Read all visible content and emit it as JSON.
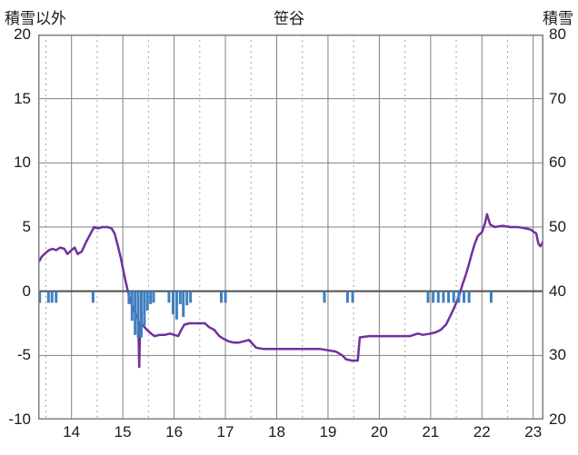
{
  "header": {
    "left_label": "積雪以外",
    "title": "笹谷",
    "right_label": "積雪"
  },
  "colors": {
    "line": "#7030a0",
    "bars": "#3f7fbf",
    "grid_major": "#808080",
    "grid_minor": "#a6a6a6",
    "zero_line": "#4d4d4d",
    "border": "#808080",
    "text": "#1a1a1a",
    "background": "#ffffff"
  },
  "chart_data": {
    "type": "line",
    "title": "笹谷",
    "left_axis": {
      "label": "積雪以外",
      "min": -10,
      "max": 20,
      "ticks": [
        20,
        15,
        10,
        5,
        0,
        -5,
        -10
      ]
    },
    "right_axis": {
      "label": "積雪",
      "min": 20,
      "max": 80,
      "ticks": [
        80,
        70,
        60,
        50,
        40,
        30,
        20
      ]
    },
    "x_axis": {
      "min": 13.35,
      "max": 23.2,
      "ticks": [
        14,
        15,
        16,
        17,
        18,
        19,
        20,
        21,
        22,
        23
      ],
      "minor_step": 0.5
    },
    "grid": {
      "major": true,
      "minor_dashed": true
    },
    "legend": "none",
    "series": [
      {
        "name": "temperature-line",
        "type": "line",
        "axis": "left",
        "color": "#7030a0",
        "points": [
          [
            13.35,
            2.2
          ],
          [
            13.42,
            2.7
          ],
          [
            13.5,
            3.0
          ],
          [
            13.56,
            3.2
          ],
          [
            13.63,
            3.3
          ],
          [
            13.7,
            3.2
          ],
          [
            13.78,
            3.4
          ],
          [
            13.86,
            3.3
          ],
          [
            13.92,
            2.9
          ],
          [
            14.0,
            3.2
          ],
          [
            14.06,
            3.4
          ],
          [
            14.12,
            2.9
          ],
          [
            14.2,
            3.1
          ],
          [
            14.28,
            3.8
          ],
          [
            14.36,
            4.4
          ],
          [
            14.44,
            5.0
          ],
          [
            14.52,
            4.9
          ],
          [
            14.6,
            5.0
          ],
          [
            14.7,
            5.0
          ],
          [
            14.78,
            4.9
          ],
          [
            14.84,
            4.5
          ],
          [
            14.9,
            3.6
          ],
          [
            14.96,
            2.6
          ],
          [
            15.02,
            1.4
          ],
          [
            15.08,
            0.3
          ],
          [
            15.14,
            -0.6
          ],
          [
            15.2,
            -1.3
          ],
          [
            15.26,
            -1.9
          ],
          [
            15.3,
            -2.2
          ],
          [
            15.32,
            -5.9
          ],
          [
            15.34,
            -2.4
          ],
          [
            15.4,
            -2.7
          ],
          [
            15.47,
            -3.0
          ],
          [
            15.55,
            -3.3
          ],
          [
            15.62,
            -3.5
          ],
          [
            15.72,
            -3.4
          ],
          [
            15.82,
            -3.4
          ],
          [
            15.92,
            -3.3
          ],
          [
            16.0,
            -3.4
          ],
          [
            16.08,
            -3.5
          ],
          [
            16.14,
            -3.0
          ],
          [
            16.2,
            -2.6
          ],
          [
            16.3,
            -2.5
          ],
          [
            16.45,
            -2.5
          ],
          [
            16.6,
            -2.5
          ],
          [
            16.68,
            -2.8
          ],
          [
            16.78,
            -3.0
          ],
          [
            16.88,
            -3.5
          ],
          [
            16.96,
            -3.7
          ],
          [
            17.06,
            -3.9
          ],
          [
            17.16,
            -4.0
          ],
          [
            17.26,
            -4.0
          ],
          [
            17.36,
            -3.9
          ],
          [
            17.46,
            -3.8
          ],
          [
            17.53,
            -4.1
          ],
          [
            17.6,
            -4.4
          ],
          [
            17.75,
            -4.5
          ],
          [
            18.0,
            -4.5
          ],
          [
            18.3,
            -4.5
          ],
          [
            18.6,
            -4.5
          ],
          [
            18.85,
            -4.5
          ],
          [
            19.0,
            -4.6
          ],
          [
            19.15,
            -4.7
          ],
          [
            19.28,
            -5.0
          ],
          [
            19.35,
            -5.3
          ],
          [
            19.46,
            -5.4
          ],
          [
            19.58,
            -5.4
          ],
          [
            19.62,
            -3.6
          ],
          [
            19.8,
            -3.5
          ],
          [
            20.0,
            -3.5
          ],
          [
            20.3,
            -3.5
          ],
          [
            20.6,
            -3.5
          ],
          [
            20.75,
            -3.3
          ],
          [
            20.85,
            -3.4
          ],
          [
            21.0,
            -3.3
          ],
          [
            21.1,
            -3.2
          ],
          [
            21.2,
            -3.0
          ],
          [
            21.3,
            -2.6
          ],
          [
            21.4,
            -1.8
          ],
          [
            21.48,
            -1.1
          ],
          [
            21.56,
            -0.3
          ],
          [
            21.62,
            0.5
          ],
          [
            21.68,
            1.2
          ],
          [
            21.74,
            2.0
          ],
          [
            21.8,
            2.9
          ],
          [
            21.86,
            3.7
          ],
          [
            21.92,
            4.3
          ],
          [
            22.0,
            4.6
          ],
          [
            22.06,
            5.3
          ],
          [
            22.1,
            6.0
          ],
          [
            22.16,
            5.2
          ],
          [
            22.25,
            5.0
          ],
          [
            22.4,
            5.1
          ],
          [
            22.55,
            5.0
          ],
          [
            22.7,
            5.0
          ],
          [
            22.85,
            4.9
          ],
          [
            22.95,
            4.8
          ],
          [
            23.02,
            4.6
          ],
          [
            23.06,
            4.5
          ],
          [
            23.1,
            3.7
          ],
          [
            23.14,
            3.5
          ],
          [
            23.18,
            3.8
          ],
          [
            23.2,
            3.9
          ]
        ]
      },
      {
        "name": "precipitation-bars",
        "type": "bar",
        "axis": "left",
        "color": "#3f7fbf",
        "bar_base": 0,
        "points": [
          [
            13.38,
            -0.9
          ],
          [
            13.55,
            -0.9
          ],
          [
            13.62,
            -0.9
          ],
          [
            13.7,
            -0.9
          ],
          [
            14.42,
            -0.9
          ],
          [
            15.12,
            -1.0
          ],
          [
            15.18,
            -2.3
          ],
          [
            15.24,
            -3.4
          ],
          [
            15.3,
            -3.6
          ],
          [
            15.36,
            -3.6
          ],
          [
            15.42,
            -2.7
          ],
          [
            15.48,
            -1.5
          ],
          [
            15.54,
            -1.0
          ],
          [
            15.6,
            -0.9
          ],
          [
            15.9,
            -0.9
          ],
          [
            15.98,
            -1.8
          ],
          [
            16.05,
            -2.2
          ],
          [
            16.12,
            -1.0
          ],
          [
            16.18,
            -2.0
          ],
          [
            16.25,
            -1.1
          ],
          [
            16.32,
            -0.9
          ],
          [
            16.92,
            -0.9
          ],
          [
            17.0,
            -0.9
          ],
          [
            18.93,
            -0.9
          ],
          [
            19.38,
            -0.9
          ],
          [
            19.48,
            -0.9
          ],
          [
            20.95,
            -0.9
          ],
          [
            21.05,
            -0.9
          ],
          [
            21.15,
            -0.9
          ],
          [
            21.25,
            -0.9
          ],
          [
            21.35,
            -0.9
          ],
          [
            21.45,
            -0.9
          ],
          [
            21.55,
            -0.9
          ],
          [
            21.65,
            -0.9
          ],
          [
            21.75,
            -0.9
          ],
          [
            22.18,
            -0.9
          ]
        ]
      }
    ]
  }
}
